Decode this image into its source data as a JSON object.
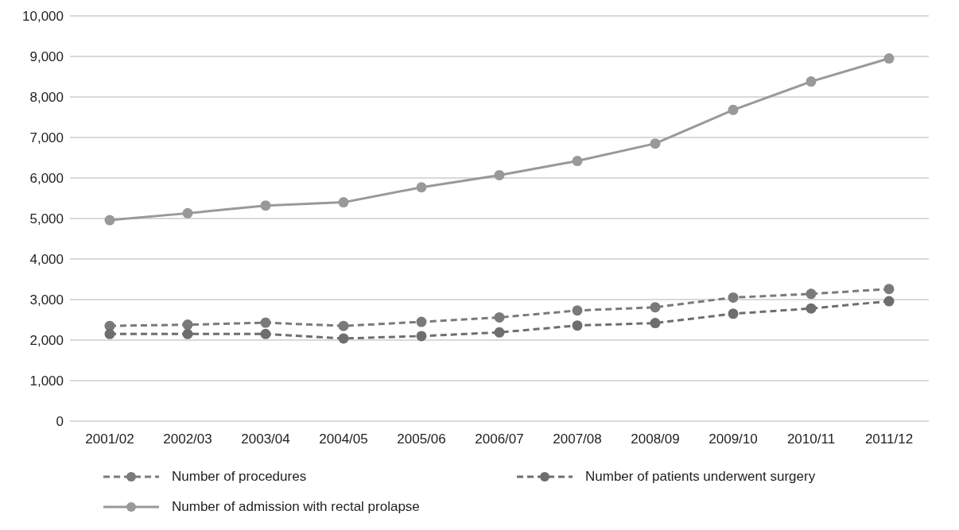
{
  "chart_data": {
    "type": "line",
    "categories": [
      "2001/02",
      "2002/03",
      "2003/04",
      "2004/05",
      "2005/06",
      "2006/07",
      "2007/08",
      "2008/09",
      "2009/10",
      "2010/11",
      "2011/12"
    ],
    "series": [
      {
        "name": "Number of procedures",
        "color": "#7a7a7a",
        "line_style": "dashed",
        "values": [
          2350,
          2380,
          2430,
          2350,
          2450,
          2560,
          2730,
          2810,
          3050,
          3140,
          3260
        ]
      },
      {
        "name": "Number of patients underwent surgery",
        "color": "#6e6e6e",
        "line_style": "dashed",
        "values": [
          2150,
          2150,
          2150,
          2040,
          2100,
          2190,
          2360,
          2420,
          2650,
          2780,
          2960
        ]
      },
      {
        "name": "Number of admission with rectal prolapse",
        "color": "#999999",
        "line_style": "solid",
        "values": [
          4960,
          5130,
          5320,
          5400,
          5770,
          6070,
          6420,
          6850,
          7680,
          8380,
          8950
        ]
      }
    ],
    "ylim": [
      0,
      10000
    ],
    "yticks": [
      {
        "value": 0,
        "label": "0"
      },
      {
        "value": 1000,
        "label": "1,000"
      },
      {
        "value": 2000,
        "label": "2,000"
      },
      {
        "value": 3000,
        "label": "3,000"
      },
      {
        "value": 4000,
        "label": "4,000"
      },
      {
        "value": 5000,
        "label": "5,000"
      },
      {
        "value": 6000,
        "label": "6,000"
      },
      {
        "value": 7000,
        "label": "7,000"
      },
      {
        "value": 8000,
        "label": "8,000"
      },
      {
        "value": 9000,
        "label": "9,000"
      },
      {
        "value": 10000,
        "label": "10,000"
      }
    ],
    "grid": "y",
    "legend": "bottom",
    "marker": "circle"
  }
}
